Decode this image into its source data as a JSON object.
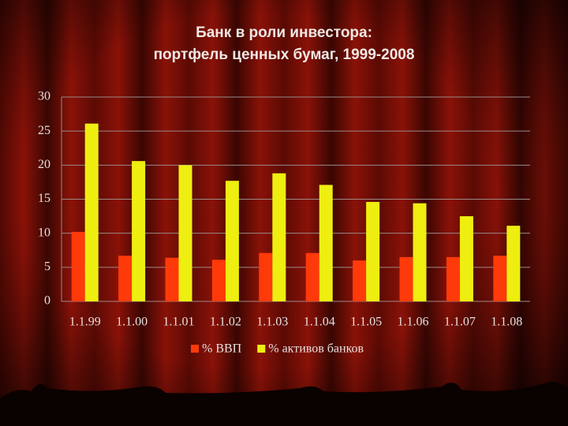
{
  "chart_data": {
    "type": "bar",
    "title": [
      "Банк в роли инвестора:",
      "портфель ценных бумаг, 1999-2008"
    ],
    "categories": [
      "1.1.99",
      "1.1.00",
      "1.1.01",
      "1.1.02",
      "1.1.03",
      "1.1.04",
      "1.1.05",
      "1.1.06",
      "1.1.07",
      "1.1.08"
    ],
    "series": [
      {
        "name": "% ВВП",
        "color": "#ff3a0a",
        "values": [
          10.2,
          6.7,
          6.4,
          6.1,
          7.1,
          7.1,
          6.0,
          6.5,
          6.5,
          6.7
        ]
      },
      {
        "name": "% активов банков",
        "color": "#eeee10",
        "values": [
          26.1,
          20.6,
          20.0,
          17.7,
          18.8,
          17.1,
          14.6,
          14.4,
          12.5,
          11.1
        ]
      }
    ],
    "ylim": [
      0,
      30
    ],
    "yticks": [
      0,
      5,
      10,
      15,
      20,
      25,
      30
    ],
    "grid": true,
    "legend": "bottom"
  }
}
